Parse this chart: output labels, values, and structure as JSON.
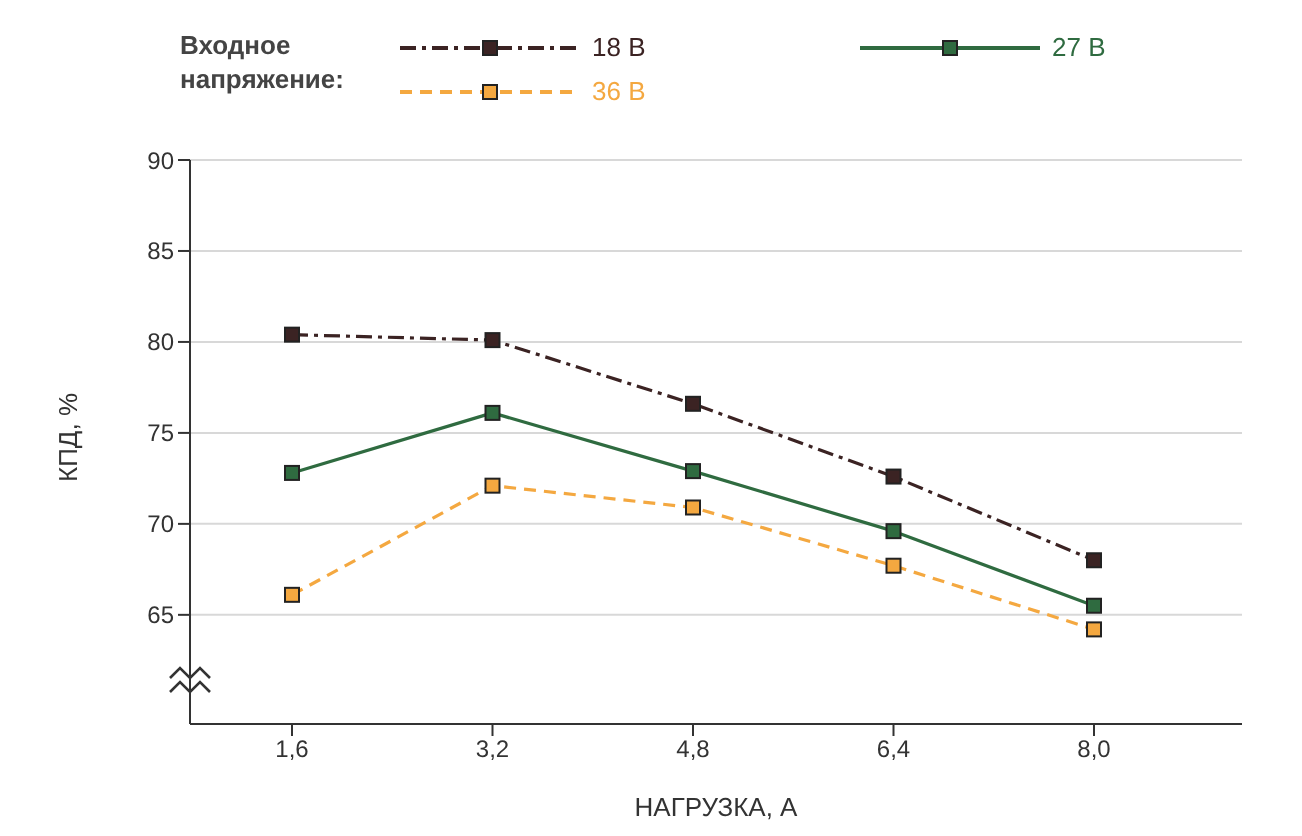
{
  "chart_data": {
    "type": "line",
    "xlabel": "НАГРУЗКА, А",
    "ylabel": "КПД, %",
    "legend_title": "Входное напряжение:",
    "categories": [
      "1,6",
      "3,2",
      "4,8",
      "6,4",
      "8,0"
    ],
    "series": [
      {
        "name": "18 В",
        "color": "#3b2323",
        "line_style": "dashdot",
        "values": [
          80.4,
          80.1,
          76.6,
          72.6,
          68.0
        ]
      },
      {
        "name": "27 В",
        "color": "#2f6b40",
        "line_style": "solid",
        "values": [
          72.8,
          76.1,
          72.9,
          69.6,
          65.5
        ]
      },
      {
        "name": "36 В",
        "color": "#f4a840",
        "line_style": "dashed",
        "values": [
          66.1,
          72.1,
          70.9,
          67.7,
          64.2
        ]
      }
    ],
    "ylim": [
      59,
      90
    ],
    "yticks": [
      65,
      70,
      75,
      80,
      85,
      90
    ],
    "grid": "y",
    "marker": "square",
    "legend": "top"
  }
}
